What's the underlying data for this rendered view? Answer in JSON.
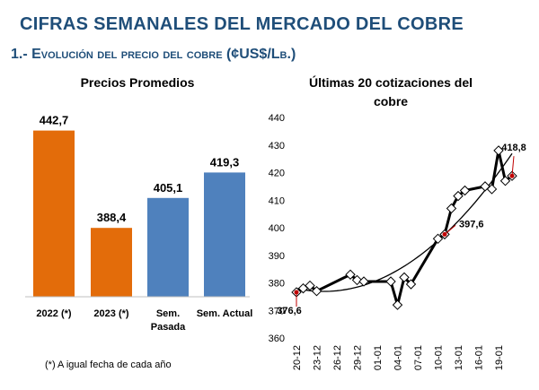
{
  "header": {
    "title": "CIFRAS SEMANALES DEL MERCADO DEL COBRE",
    "subtitle_prefix": "1.- ",
    "subtitle_main": "Evolución del precio del cobre (¢US$/Lb.)"
  },
  "chart_data": [
    {
      "type": "bar",
      "title": "Precios Promedios",
      "categories": [
        "2022 (*)",
        "2023 (*)",
        "Sem. Pasada",
        "Sem. Actual"
      ],
      "values": [
        442.7,
        388.4,
        405.1,
        419.3
      ],
      "value_labels": [
        "442,7",
        "388,4",
        "405,1",
        "419,3"
      ],
      "colors": [
        "#e36c0a",
        "#e36c0a",
        "#4f81bd",
        "#4f81bd"
      ],
      "footnote": "(*) A igual fecha de cada año"
    },
    {
      "type": "line",
      "title_line1": "Últimas 20 cotizaciones del",
      "title_line2": "cobre",
      "ylim": [
        360,
        440
      ],
      "yticks": [
        "360",
        "370",
        "380",
        "390",
        "400",
        "410",
        "420",
        "430",
        "440"
      ],
      "xticks": [
        "20-12",
        "23-12",
        "26-12",
        "29-12",
        "01-01",
        "04-01",
        "07-01",
        "10-01",
        "13-01",
        "16-01",
        "19-01"
      ],
      "grid": false,
      "trend": "polynomial",
      "series": [
        {
          "values": [
            [
              0,
              376.6
            ],
            [
              1,
              378
            ],
            [
              2,
              379
            ],
            [
              3,
              377
            ],
            [
              8,
              383
            ],
            [
              9,
              381
            ],
            [
              10,
              380.5
            ],
            [
              14,
              380.5
            ],
            [
              15,
              372
            ],
            [
              16,
              382
            ],
            [
              17,
              379.5
            ],
            [
              21,
              396
            ],
            [
              22,
              397.6
            ],
            [
              23,
              407
            ],
            [
              24,
              411.5
            ],
            [
              25,
              413.5
            ],
            [
              28,
              415
            ],
            [
              29,
              414
            ],
            [
              30,
              428
            ],
            [
              31,
              417
            ],
            [
              32,
              418.8
            ]
          ]
        }
      ],
      "annotations": [
        {
          "x": 0,
          "y": 376.6,
          "label": "376,6",
          "color": "#c00000"
        },
        {
          "x": 22,
          "y": 397.6,
          "label": "397,6",
          "color": "#c00000"
        },
        {
          "x": 32,
          "y": 418.8,
          "label": "418,8",
          "color": "#c00000"
        }
      ]
    }
  ]
}
